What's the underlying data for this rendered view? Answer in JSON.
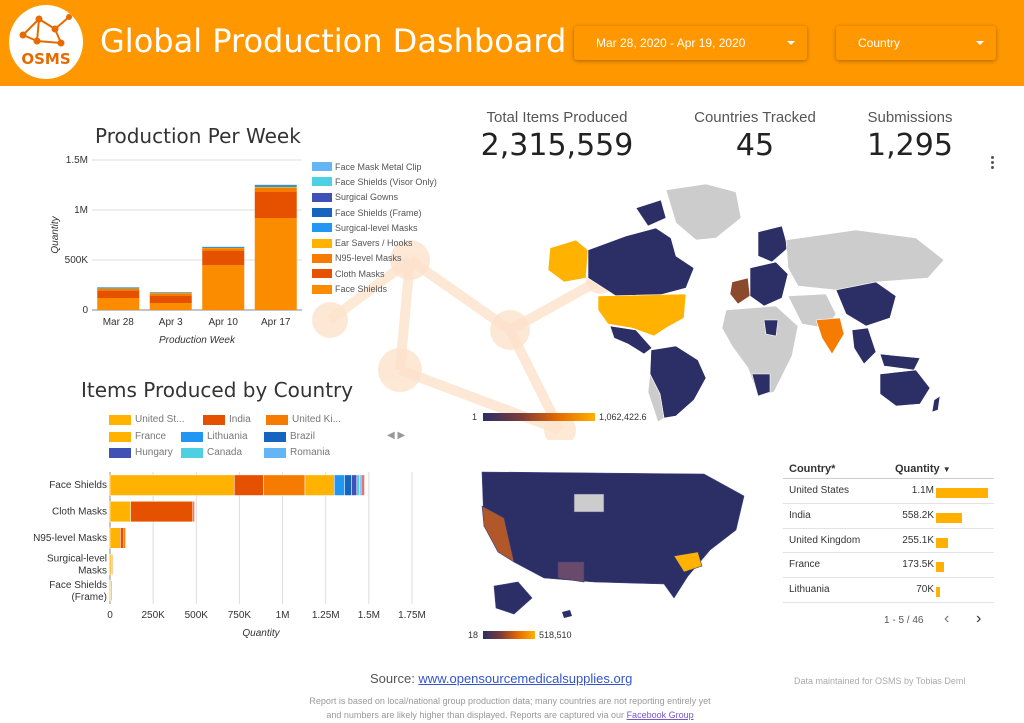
{
  "header": {
    "title": "Global Production Dashboard",
    "logo_text": "OSMS",
    "date_range": "Mar 28, 2020 - Apr 19, 2020",
    "country_filter": "Country",
    "background": "#ff9800"
  },
  "weekly_chart": {
    "title": "Production Per Week",
    "xlabel": "Production Week",
    "ylabel": "Quantity",
    "y_ticks": [
      "0",
      "500K",
      "1M",
      "1.5M"
    ],
    "legend": [
      {
        "label": "Face Mask Metal Clip",
        "color": "#64b5f6"
      },
      {
        "label": "Face Shields (Visor Only)",
        "color": "#4dd0e1"
      },
      {
        "label": "Surgical Gowns",
        "color": "#3f51b5"
      },
      {
        "label": "Face Shields (Frame)",
        "color": "#1565c0"
      },
      {
        "label": "Surgical-level Masks",
        "color": "#2196f3"
      },
      {
        "label": "Ear Savers / Hooks",
        "color": "#ffb300"
      },
      {
        "label": "N95-level Masks",
        "color": "#f57c00"
      },
      {
        "label": "Cloth Masks",
        "color": "#e65100"
      },
      {
        "label": "Face Shields",
        "color": "#fb8c00"
      }
    ]
  },
  "country_chart": {
    "title": "Items Produced by Country",
    "xlabel": "Quantity",
    "x_ticks": [
      "0",
      "250K",
      "500K",
      "750K",
      "1M",
      "1.25M",
      "1.5M",
      "1.75M"
    ],
    "legend": [
      {
        "label": "United St...",
        "color": "#ffb300"
      },
      {
        "label": "India",
        "color": "#e65100"
      },
      {
        "label": "United Ki...",
        "color": "#f57c00"
      },
      {
        "label": "France",
        "color": "#ffb300"
      },
      {
        "label": "Lithuania",
        "color": "#2196f3"
      },
      {
        "label": "Brazil",
        "color": "#1565c0"
      },
      {
        "label": "Hungary",
        "color": "#3f51b5"
      },
      {
        "label": "Canada",
        "color": "#4dd0e1"
      },
      {
        "label": "Romania",
        "color": "#64b5f6"
      }
    ],
    "legend_nav": "◀ ▶"
  },
  "chart_data": [
    {
      "type": "bar",
      "stacked": true,
      "title": "Production Per Week",
      "xlabel": "Production Week",
      "ylabel": "Quantity",
      "ylim": [
        0,
        1500000
      ],
      "categories": [
        "Mar 28",
        "Apr 3",
        "Apr 10",
        "Apr 17"
      ],
      "series": [
        {
          "name": "Face Shields",
          "color": "#fb8c00",
          "values": [
            120000,
            70000,
            450000,
            920000
          ]
        },
        {
          "name": "Cloth Masks",
          "color": "#e65100",
          "values": [
            70000,
            70000,
            140000,
            260000
          ]
        },
        {
          "name": "N95-level Masks",
          "color": "#f57c00",
          "values": [
            20000,
            25000,
            25000,
            40000
          ]
        },
        {
          "name": "Ear Savers / Hooks",
          "color": "#ffb300",
          "values": [
            5000,
            5000,
            5000,
            10000
          ]
        },
        {
          "name": "Surgical-level Masks",
          "color": "#2196f3",
          "values": [
            5000,
            3000,
            5000,
            10000
          ]
        },
        {
          "name": "Face Shields (Frame)",
          "color": "#1565c0",
          "values": [
            3000,
            2000,
            3000,
            5000
          ]
        },
        {
          "name": "Surgical Gowns",
          "color": "#3f51b5",
          "values": [
            2000,
            2000,
            2000,
            3000
          ]
        },
        {
          "name": "Face Shields (Visor Only)",
          "color": "#4dd0e1",
          "values": [
            2000,
            2000,
            2000,
            3000
          ]
        },
        {
          "name": "Face Mask Metal Clip",
          "color": "#64b5f6",
          "values": [
            1000,
            1000,
            1000,
            2000
          ]
        }
      ]
    },
    {
      "type": "bar",
      "orientation": "horizontal",
      "stacked": true,
      "title": "Items Produced by Country",
      "xlabel": "Quantity",
      "xlim": [
        0,
        1750000
      ],
      "categories": [
        "Face Shields",
        "Cloth Masks",
        "N95-level Masks",
        "Surgical-level Masks",
        "Face Shields (Frame)"
      ],
      "series": [
        {
          "name": "United St...",
          "color": "#ffb300",
          "values": [
            720000,
            120000,
            60000,
            10000,
            5000
          ]
        },
        {
          "name": "India",
          "color": "#e65100",
          "values": [
            170000,
            360000,
            20000,
            0,
            0
          ]
        },
        {
          "name": "United Ki...",
          "color": "#f57c00",
          "values": [
            240000,
            0,
            10000,
            5000,
            0
          ]
        },
        {
          "name": "France",
          "color": "#ffb300",
          "values": [
            170000,
            0,
            0,
            0,
            0
          ]
        },
        {
          "name": "Lithuania",
          "color": "#2196f3",
          "values": [
            60000,
            0,
            0,
            0,
            5000
          ]
        },
        {
          "name": "Brazil",
          "color": "#1565c0",
          "values": [
            40000,
            0,
            0,
            0,
            0
          ]
        },
        {
          "name": "Hungary",
          "color": "#3f51b5",
          "values": [
            30000,
            0,
            0,
            0,
            0
          ]
        },
        {
          "name": "Canada",
          "color": "#4dd0e1",
          "values": [
            15000,
            0,
            0,
            0,
            0
          ]
        },
        {
          "name": "Romania",
          "color": "#64b5f6",
          "values": [
            10000,
            0,
            0,
            0,
            0
          ]
        },
        {
          "name": "Other",
          "color": "#e57373",
          "values": [
            20000,
            10000,
            0,
            0,
            0
          ]
        }
      ]
    }
  ],
  "kpis": [
    {
      "label": "Total Items Produced",
      "value": "2,315,559"
    },
    {
      "label": "Countries Tracked",
      "value": "45"
    },
    {
      "label": "Submissions",
      "value": "1,295"
    }
  ],
  "world_map": {
    "min_label": "1",
    "max_label": "1,062,422.6"
  },
  "us_map": {
    "min_label": "18",
    "max_label": "518,510"
  },
  "country_table": {
    "col_country": "Country*",
    "col_quantity": "Quantity",
    "sort_indicator": "▼",
    "rows": [
      {
        "country": "United States",
        "quantity": "1.1M",
        "share": 1.0
      },
      {
        "country": "India",
        "quantity": "558.2K",
        "share": 0.5
      },
      {
        "country": "United Kingdom",
        "quantity": "255.1K",
        "share": 0.23
      },
      {
        "country": "France",
        "quantity": "173.5K",
        "share": 0.16
      },
      {
        "country": "Lithuania",
        "quantity": "70K",
        "share": 0.07
      }
    ],
    "pagination": "1 - 5 / 46",
    "prev": "‹",
    "next": "›"
  },
  "footer": {
    "source_prefix": "Source: ",
    "source_link": "www.opensourcemedicalsupplies.org",
    "note_line1": "Report is based on local/national group production data; many countries are not reporting entirely yet",
    "note_line2_prefix": "and numbers are likely higher than displayed. Reports are captured via our ",
    "note_link": "Facebook Group",
    "credit": "Data maintained for OSMS by Tobias Deml"
  }
}
